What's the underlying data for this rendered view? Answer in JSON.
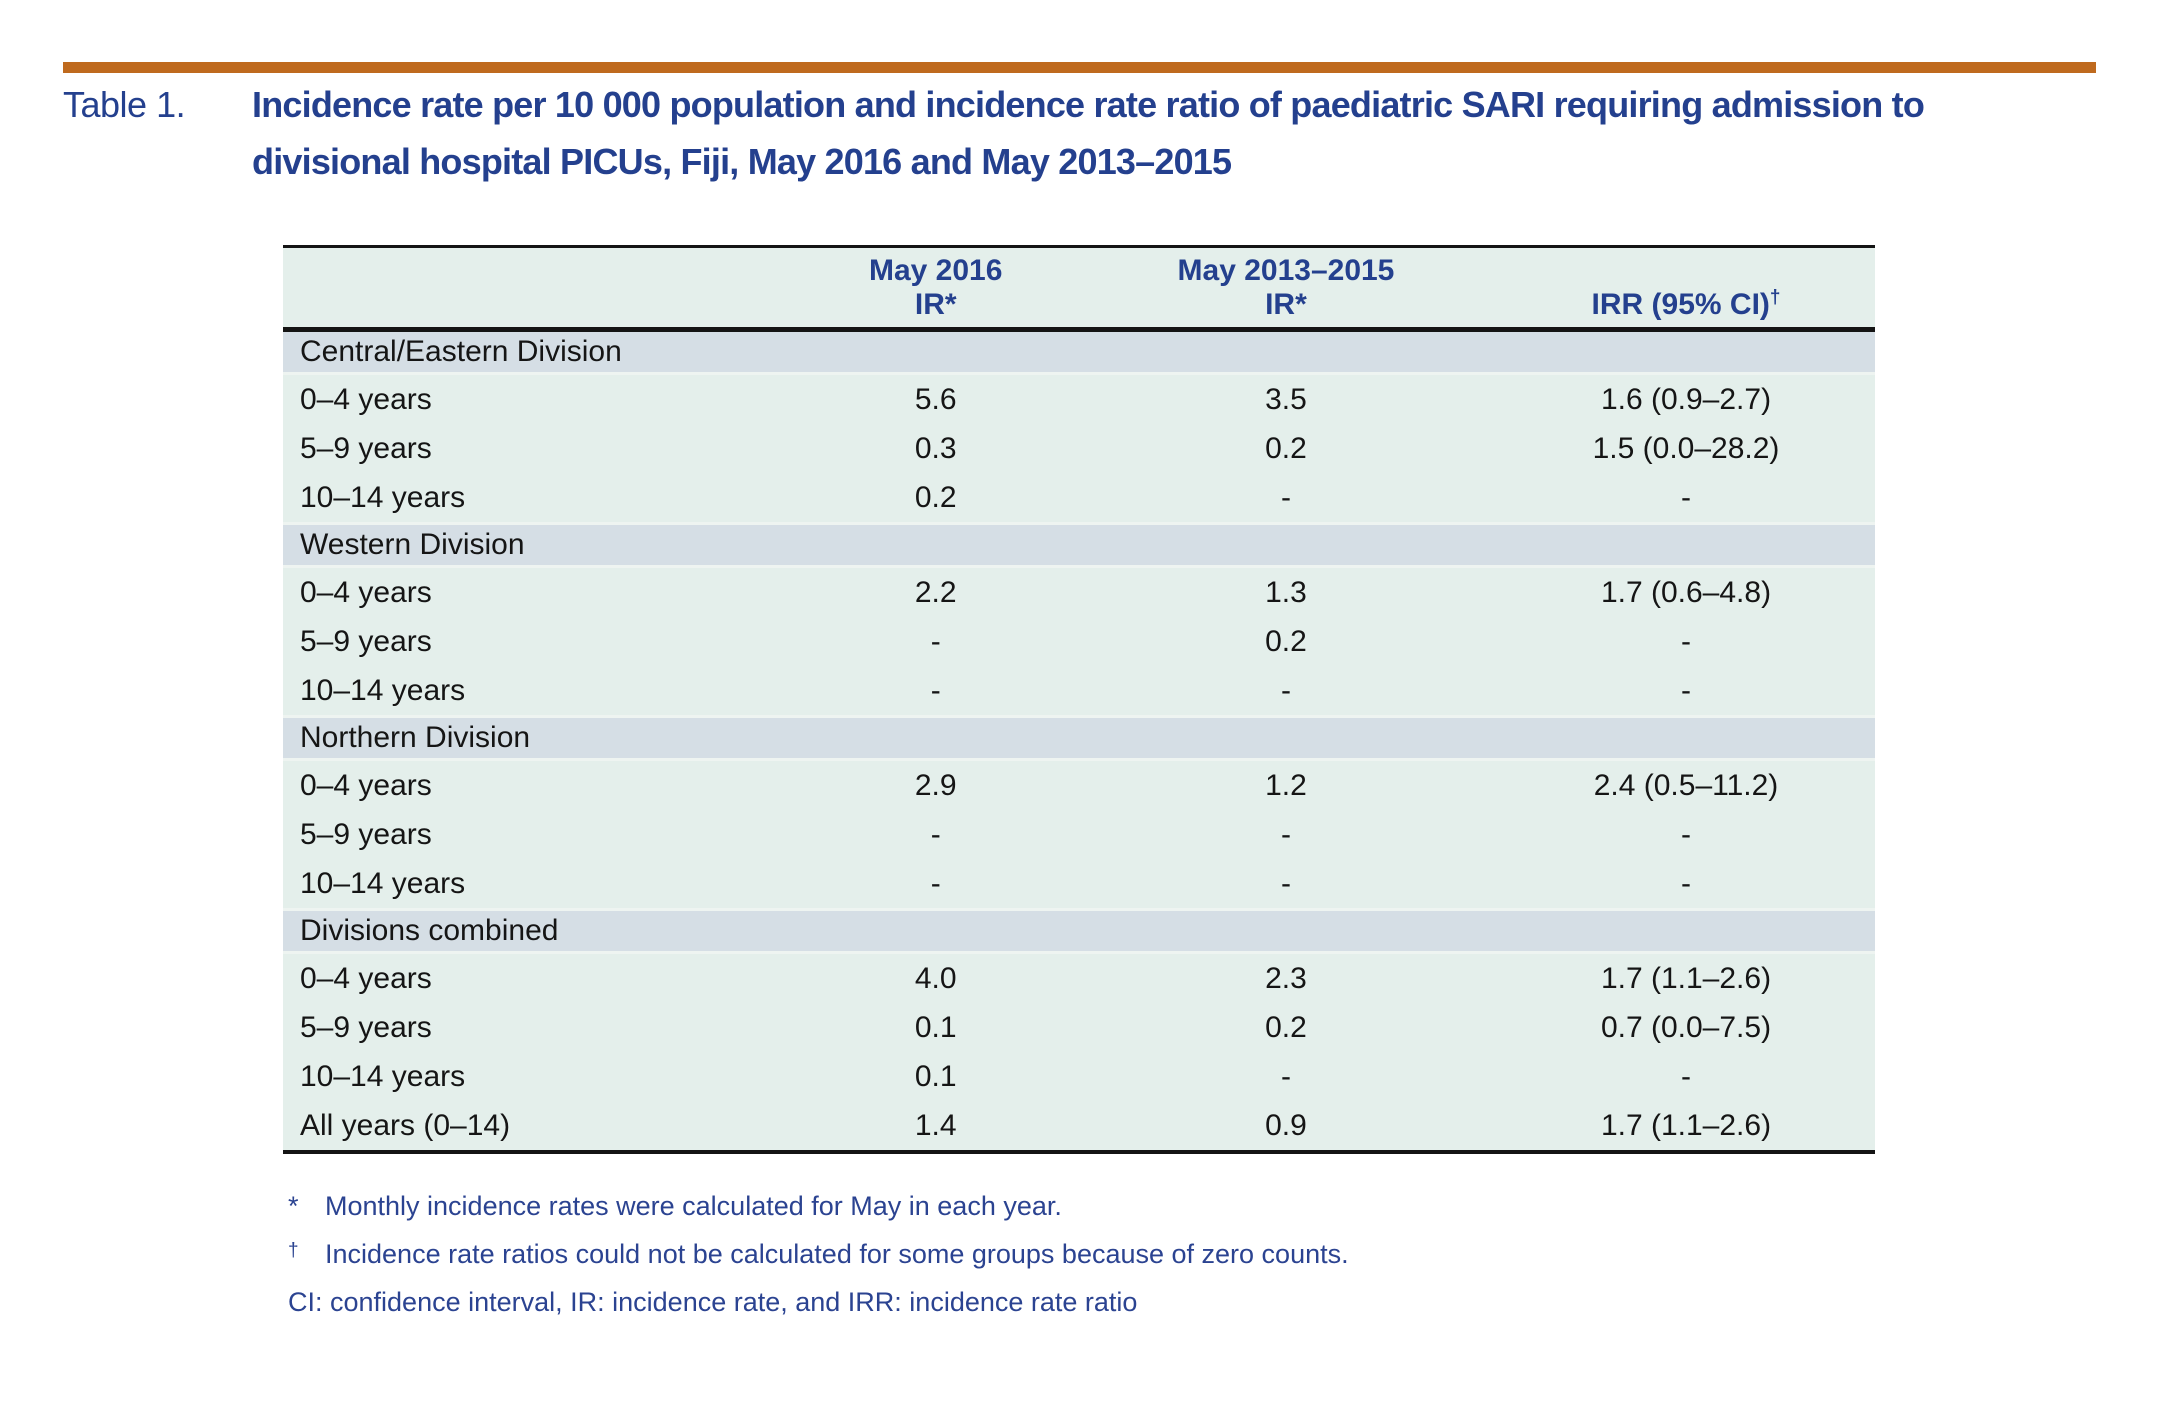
{
  "caption": {
    "label": "Table 1.",
    "lines": [
      "Incidence rate per 10 000 population and incidence rate ratio of paediatric SARI requiring admission to",
      "divisional hospital PICUs, Fiji, May 2016 and May 2013–2015"
    ]
  },
  "table": {
    "header": {
      "may2016": {
        "line1": "May 2016",
        "line2": "IR*"
      },
      "may2013_2015": {
        "line1": "May 2013–2015",
        "line2": "IR*"
      },
      "irr": {
        "text": "IRR (95% CI)",
        "sup": "†"
      }
    },
    "sections": [
      {
        "label": "Central/Eastern Division",
        "rows": [
          {
            "age": "0–4 years",
            "ir_2016": "5.6",
            "ir_2013_2015": "3.5",
            "irr": "1.6 (0.9–2.7)"
          },
          {
            "age": "5–9 years",
            "ir_2016": "0.3",
            "ir_2013_2015": "0.2",
            "irr": "1.5 (0.0–28.2)"
          },
          {
            "age": "10–14 years",
            "ir_2016": "0.2",
            "ir_2013_2015": "-",
            "irr": "-"
          }
        ]
      },
      {
        "label": "Western Division",
        "rows": [
          {
            "age": "0–4 years",
            "ir_2016": "2.2",
            "ir_2013_2015": "1.3",
            "irr": "1.7 (0.6–4.8)"
          },
          {
            "age": "5–9 years",
            "ir_2016": "-",
            "ir_2013_2015": "0.2",
            "irr": "-"
          },
          {
            "age": "10–14 years",
            "ir_2016": "-",
            "ir_2013_2015": "-",
            "irr": "-"
          }
        ]
      },
      {
        "label": "Northern Division",
        "rows": [
          {
            "age": "0–4 years",
            "ir_2016": "2.9",
            "ir_2013_2015": "1.2",
            "irr": "2.4 (0.5–11.2)"
          },
          {
            "age": "5–9 years",
            "ir_2016": "-",
            "ir_2013_2015": "-",
            "irr": "-"
          },
          {
            "age": "10–14 years",
            "ir_2016": "-",
            "ir_2013_2015": "-",
            "irr": "-"
          }
        ]
      },
      {
        "label": "Divisions combined",
        "rows": [
          {
            "age": "0–4 years",
            "ir_2016": "4.0",
            "ir_2013_2015": "2.3",
            "irr": "1.7 (1.1–2.6)"
          },
          {
            "age": "5–9 years",
            "ir_2016": "0.1",
            "ir_2013_2015": "0.2",
            "irr": "0.7 (0.0–7.5)"
          },
          {
            "age": "10–14 years",
            "ir_2016": "0.1",
            "ir_2013_2015": "-",
            "irr": "-"
          },
          {
            "age": "All years (0–14)",
            "ir_2016": "1.4",
            "ir_2013_2015": "0.9",
            "irr": "1.7 (1.1–2.6)"
          }
        ]
      }
    ]
  },
  "footnotes": [
    {
      "marker": "*",
      "sup": false,
      "text": "Monthly incidence rates were calculated for May in each year."
    },
    {
      "marker": "†",
      "sup": true,
      "text": "Incidence rate ratios could not be calculated for some groups because of zero counts."
    },
    {
      "marker": "",
      "sup": false,
      "text": "CI: confidence interval, IR: incidence rate, and IRR: incidence rate ratio"
    }
  ],
  "colors": {
    "accent_rule": "#bf6a1e",
    "heading_navy": "#24408e",
    "section_band_bg": "#d5dee5",
    "row_bg": "#e4efeb",
    "table_border": "#141414"
  }
}
